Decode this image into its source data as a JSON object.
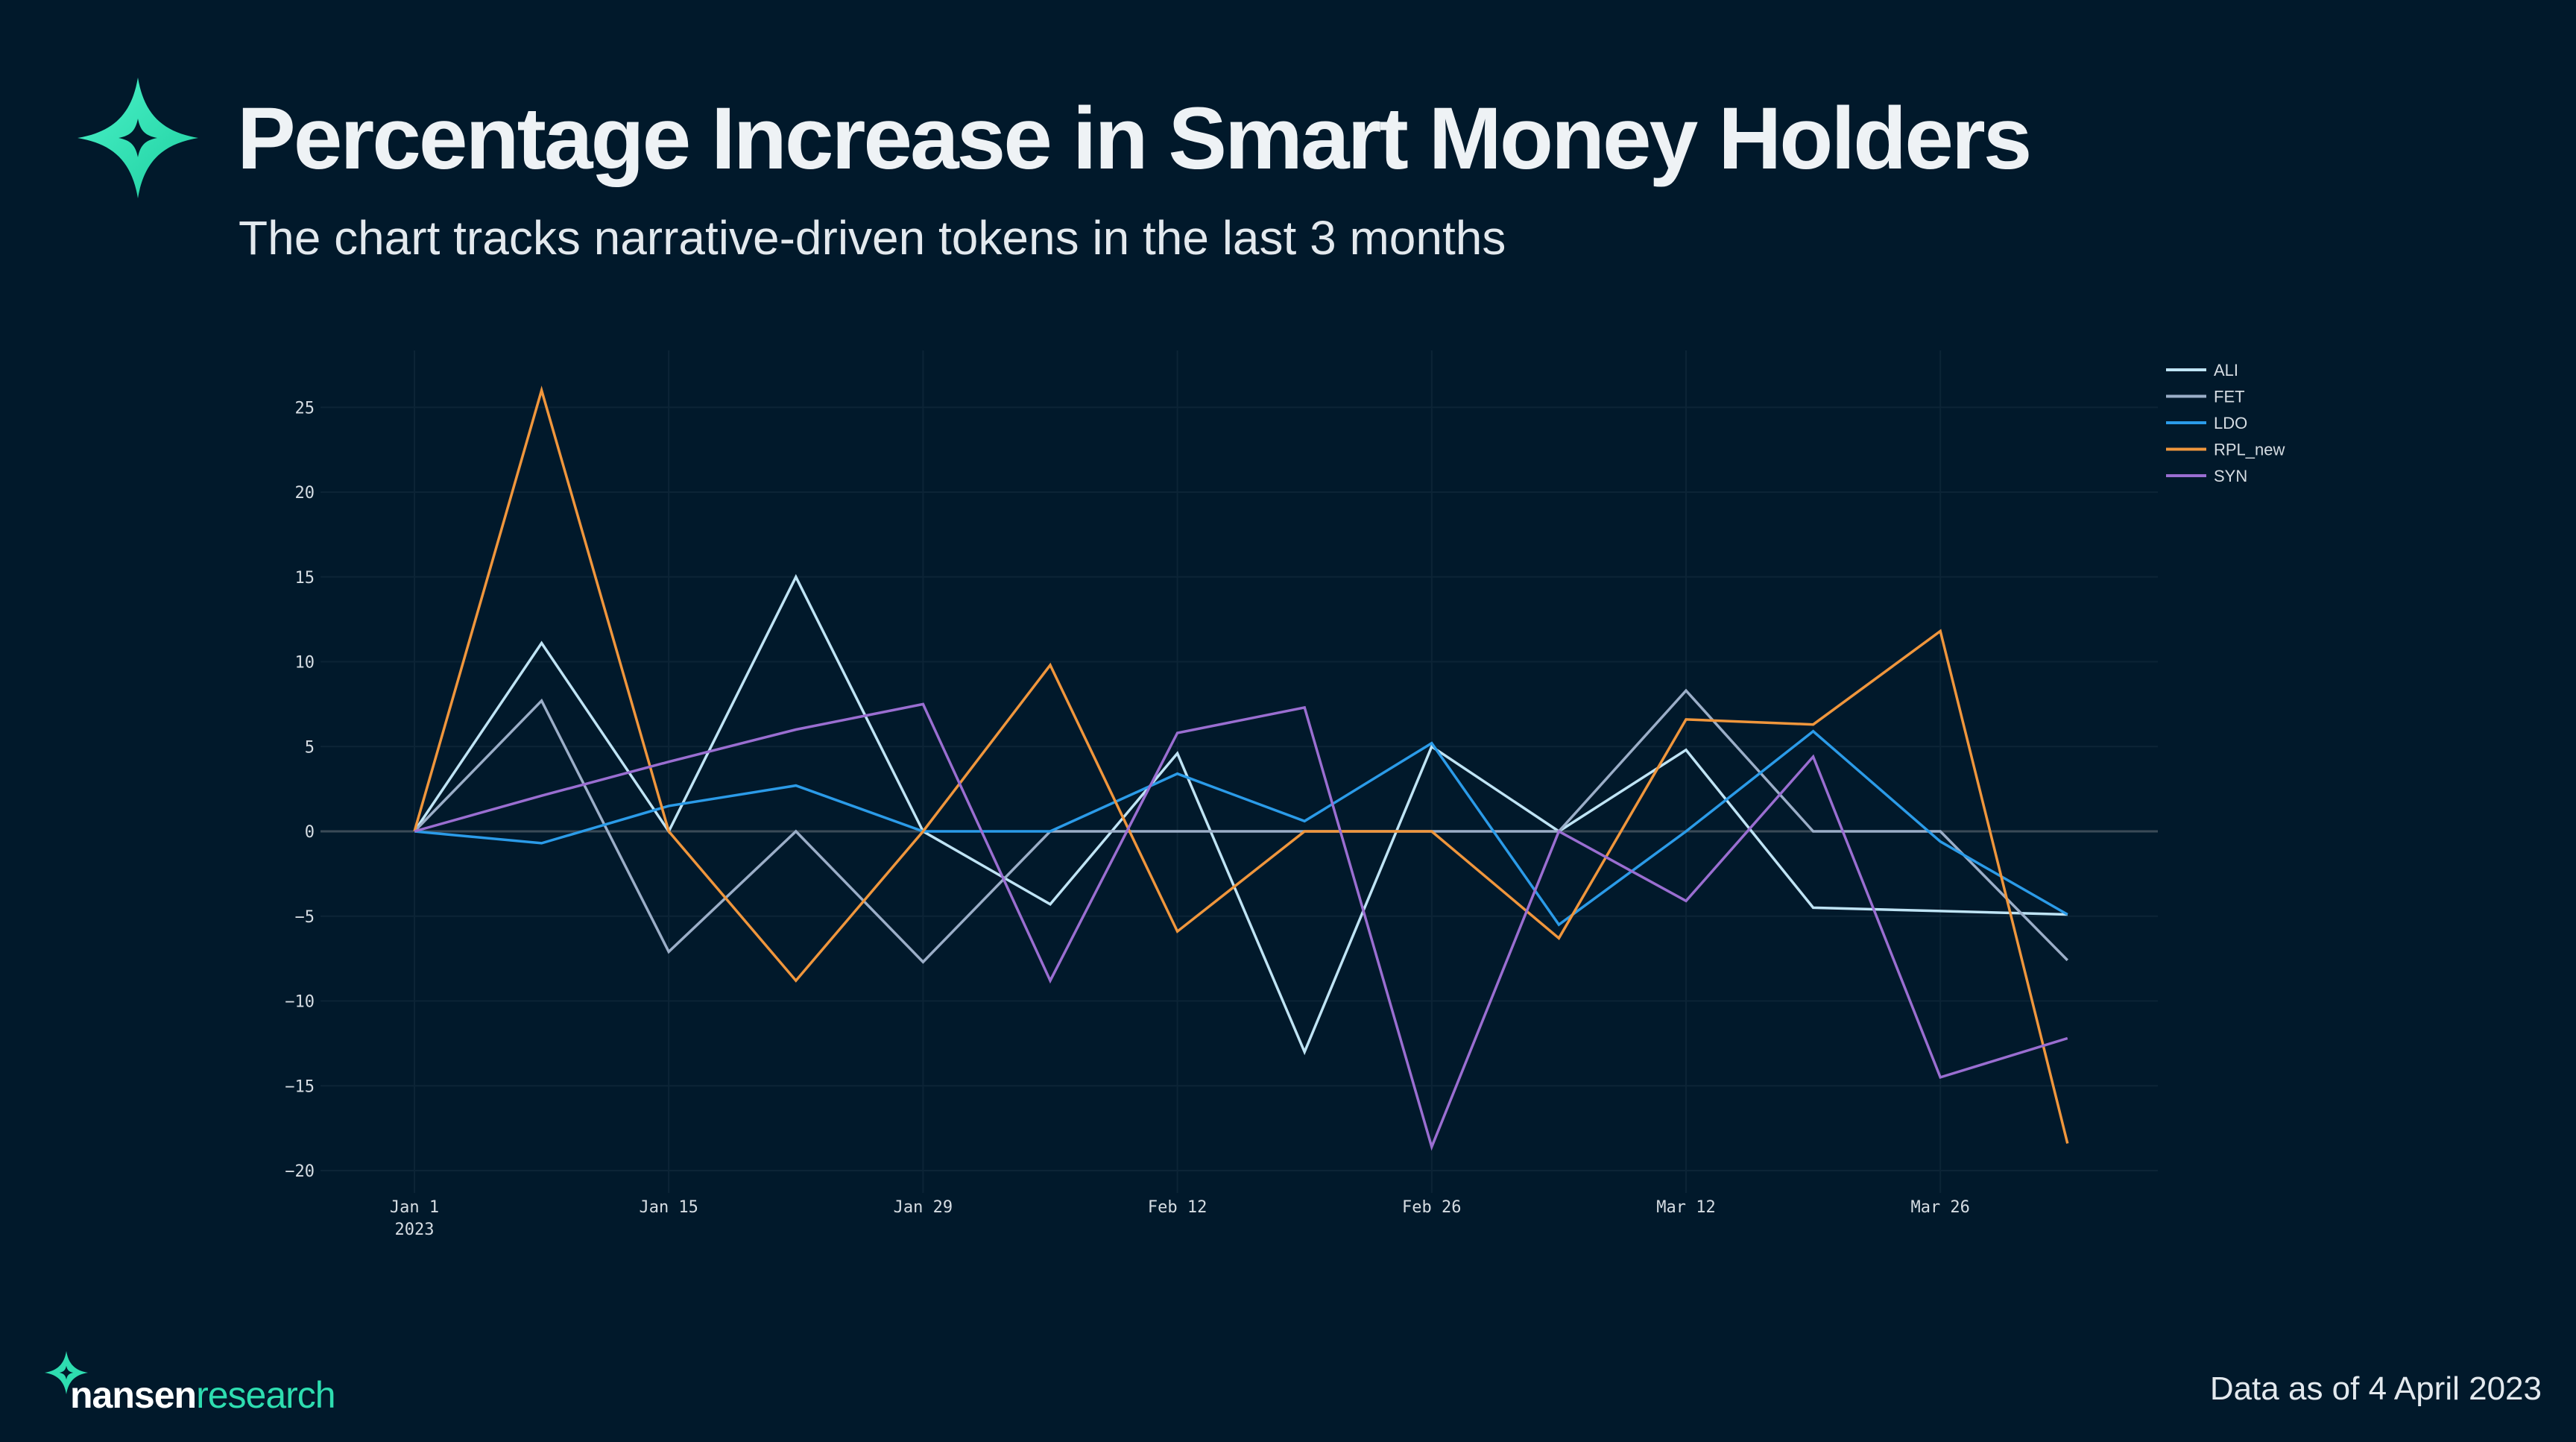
{
  "header": {
    "title": "Percentage Increase in Smart Money Holders",
    "subtitle": "The chart tracks narrative-driven tokens in the last 3 months"
  },
  "brand": {
    "name_bold": "nansen",
    "name_light": "research",
    "accent_color": "#2EDDB0"
  },
  "footer": {
    "note": "Data as of 4 April 2023"
  },
  "chart_data": {
    "type": "line",
    "title": "Percentage Increase in Smart Money Holders",
    "xlabel": "",
    "ylabel": "",
    "x": [
      "2023-01-01",
      "2023-01-08",
      "2023-01-15",
      "2023-01-22",
      "2023-01-29",
      "2023-02-05",
      "2023-02-12",
      "2023-02-19",
      "2023-02-26",
      "2023-03-05",
      "2023-03-12",
      "2023-03-19",
      "2023-03-26",
      "2023-04-02"
    ],
    "x_ticks": [
      {
        "index": 0,
        "label": "Jan 1",
        "sublabel": "2023"
      },
      {
        "index": 2,
        "label": "Jan 15",
        "sublabel": ""
      },
      {
        "index": 4,
        "label": "Jan 29",
        "sublabel": ""
      },
      {
        "index": 6,
        "label": "Feb 12",
        "sublabel": ""
      },
      {
        "index": 8,
        "label": "Feb 26",
        "sublabel": ""
      },
      {
        "index": 10,
        "label": "Mar 12",
        "sublabel": ""
      },
      {
        "index": 12,
        "label": "Mar 26",
        "sublabel": ""
      }
    ],
    "y_ticks": [
      25,
      20,
      15,
      10,
      5,
      0,
      -5,
      -10,
      -15,
      -20
    ],
    "y_tick_labels": [
      "25",
      "20",
      "15",
      "10",
      "5",
      "0",
      "−5",
      "−10",
      "−15",
      "−20"
    ],
    "ylim": [
      -21,
      27
    ],
    "grid": true,
    "legend_position": "top-right",
    "series": [
      {
        "name": "ALI",
        "color": "#BFE4F5",
        "values": [
          0,
          11.1,
          0,
          15,
          0,
          -4.3,
          4.6,
          -13.0,
          5.0,
          0,
          4.8,
          -4.5,
          -4.7,
          -4.9
        ]
      },
      {
        "name": "FET",
        "color": "#9BAEC8",
        "values": [
          0,
          7.7,
          -7.1,
          0,
          -7.7,
          0,
          0,
          0,
          0,
          0,
          8.3,
          0,
          0,
          -7.6
        ]
      },
      {
        "name": "LDO",
        "color": "#2B9BE8",
        "values": [
          0,
          -0.7,
          1.5,
          2.7,
          0,
          0,
          3.4,
          0.6,
          5.2,
          -5.5,
          0,
          5.9,
          -0.6,
          -4.9
        ]
      },
      {
        "name": "RPL_new",
        "color": "#F0963C",
        "values": [
          0,
          26,
          0,
          -8.8,
          0,
          9.8,
          -5.9,
          0,
          0,
          -6.3,
          6.6,
          6.3,
          11.8,
          -18.4
        ]
      },
      {
        "name": "SYN",
        "color": "#9A6ED1",
        "values": [
          0,
          2.1,
          4.1,
          6.0,
          7.5,
          -8.8,
          5.8,
          7.3,
          -18.6,
          0,
          -4.1,
          4.4,
          -14.5,
          -12.2
        ]
      }
    ]
  }
}
